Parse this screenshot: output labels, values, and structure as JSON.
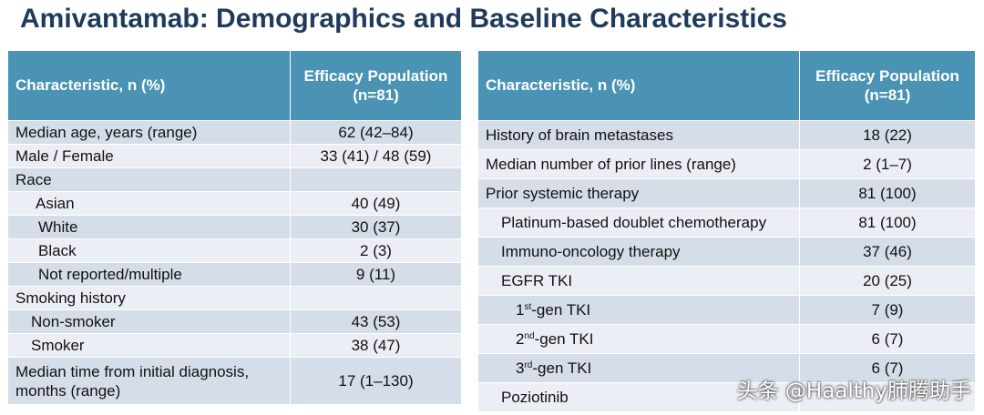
{
  "title": "Amivantamab: Demographics and Baseline Characteristics",
  "header": {
    "characteristic": "Characteristic, n (%)",
    "population_line1": "Efficacy Population",
    "population_line2": "(n=81)"
  },
  "left_rows": [
    {
      "label": "Median age, years (range)",
      "value": "62 (42–84)"
    },
    {
      "label": "Male / Female",
      "value": "33 (41) / 48 (59)"
    },
    {
      "label": "Race",
      "value": ""
    },
    {
      "label": "Asian",
      "value": "40 (49)"
    },
    {
      "label": "White",
      "value": "30 (37)"
    },
    {
      "label": "Black",
      "value": "2 (3)"
    },
    {
      "label": "Not reported/multiple",
      "value": "9 (11)"
    },
    {
      "label": "Smoking history",
      "value": ""
    },
    {
      "label": "Non-smoker",
      "value": "43 (53)"
    },
    {
      "label": "Smoker",
      "value": "38 (47)"
    },
    {
      "label_line1": "Median time from initial diagnosis,",
      "label_line2": "months (range)",
      "value": "17 (1–130)"
    }
  ],
  "right_rows": [
    {
      "label": "History of brain metastases",
      "value": "18 (22)"
    },
    {
      "label": "Median number of prior lines (range)",
      "value": "2 (1–7)"
    },
    {
      "label": "Prior systemic therapy",
      "value": "81 (100)"
    },
    {
      "label": "Platinum-based doublet chemotherapy",
      "value": "81 (100)"
    },
    {
      "label": "Immuno-oncology therapy",
      "value": "37 (46)"
    },
    {
      "label": "EGFR TKI",
      "value": "20 (25)"
    },
    {
      "num": "1",
      "sup": "st",
      "rest": "-gen TKI",
      "value": "7 (9)"
    },
    {
      "num": "2",
      "sup": "nd",
      "rest": "-gen TKI",
      "value": "6 (7)"
    },
    {
      "num": "3",
      "sup": "rd",
      "rest": "-gen TKI",
      "value": "6 (7)"
    },
    {
      "label": "Poziotinib",
      "value": ""
    }
  ],
  "watermark": "头条 @Haalthy肺腾助手"
}
